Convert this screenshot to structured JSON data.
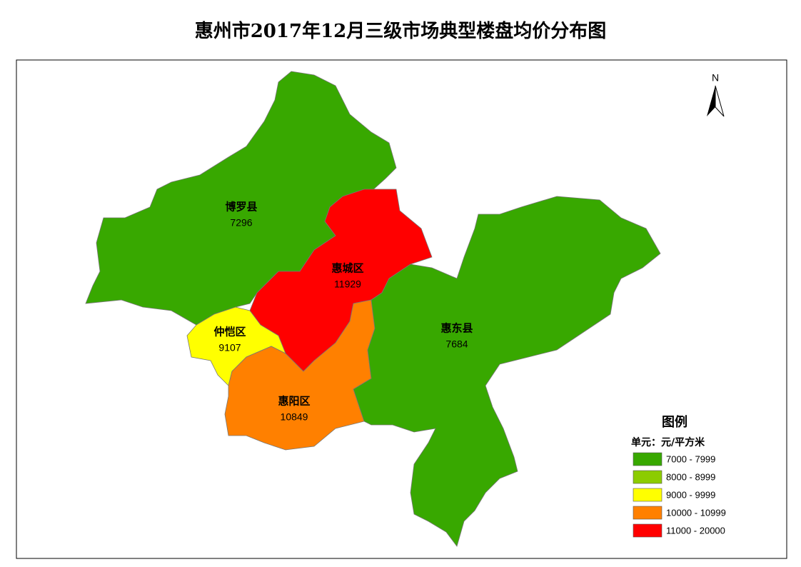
{
  "title": "惠州市2017年12月三级市场典型楼盘均价分布图",
  "north": "N",
  "regions": [
    {
      "name": "博罗县",
      "value": 7296,
      "color": "#38a800"
    },
    {
      "name": "惠城区",
      "value": 11929,
      "color": "#ff0000"
    },
    {
      "name": "仲恺区",
      "value": 9107,
      "color": "#ffff00"
    },
    {
      "name": "惠阳区",
      "value": 10849,
      "color": "#ff8000"
    },
    {
      "name": "惠东县",
      "value": 7684,
      "color": "#38a800"
    }
  ],
  "legend": {
    "title": "图例",
    "unit": "单元：元/平方米",
    "classes": [
      {
        "label": "7000 - 7999",
        "color": "#38a800"
      },
      {
        "label": "8000 - 8999",
        "color": "#8ccc00"
      },
      {
        "label": "9000 - 9999",
        "color": "#ffff00"
      },
      {
        "label": "10000 - 10999",
        "color": "#ff8000"
      },
      {
        "label": "11000 - 20000",
        "color": "#ff0000"
      }
    ]
  }
}
